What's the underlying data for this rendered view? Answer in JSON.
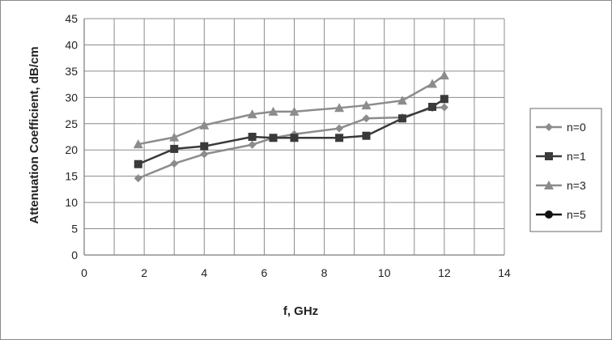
{
  "chart_data": {
    "type": "line",
    "title": "",
    "xlabel": "f, GHz",
    "ylabel": "Attenuation Coefficient, dB/cm",
    "xlim": [
      0,
      14
    ],
    "ylim": [
      0,
      45
    ],
    "xticks": [
      0,
      2,
      4,
      6,
      8,
      10,
      12,
      14
    ],
    "yticks": [
      0,
      5,
      10,
      15,
      20,
      25,
      30,
      35,
      40,
      45
    ],
    "grid": true,
    "legend": "right",
    "series": [
      {
        "name": "n=0",
        "marker": "diamond",
        "color": "#8c8c8c",
        "x": [
          1.8,
          3.0,
          4.0,
          5.6,
          6.3,
          7.0,
          8.5,
          9.4,
          10.6,
          11.6,
          12.0
        ],
        "y": [
          14.6,
          17.4,
          19.2,
          21.0,
          22.3,
          23.0,
          24.1,
          26.0,
          26.2,
          28.0,
          28.1
        ]
      },
      {
        "name": "n=1",
        "marker": "square",
        "color": "#3a3a3a",
        "x": [
          1.8,
          3.0,
          4.0,
          5.6,
          6.3,
          7.0,
          8.5,
          9.4,
          10.6,
          11.6,
          12.0
        ],
        "y": [
          17.3,
          20.2,
          20.7,
          22.5,
          22.3,
          22.3,
          22.3,
          22.7,
          26.0,
          28.2,
          29.7
        ]
      },
      {
        "name": "n=3",
        "marker": "triangle",
        "color": "#8c8c8c",
        "x": [
          1.8,
          3.0,
          4.0,
          5.6,
          6.3,
          7.0,
          8.5,
          9.4,
          10.6,
          11.6,
          12.0
        ],
        "y": [
          21.1,
          22.4,
          24.7,
          26.8,
          27.3,
          27.3,
          28.0,
          28.5,
          29.4,
          32.6,
          34.2
        ]
      },
      {
        "name": "n=5",
        "marker": "circle",
        "color": "#111111",
        "x": [],
        "y": []
      }
    ]
  }
}
